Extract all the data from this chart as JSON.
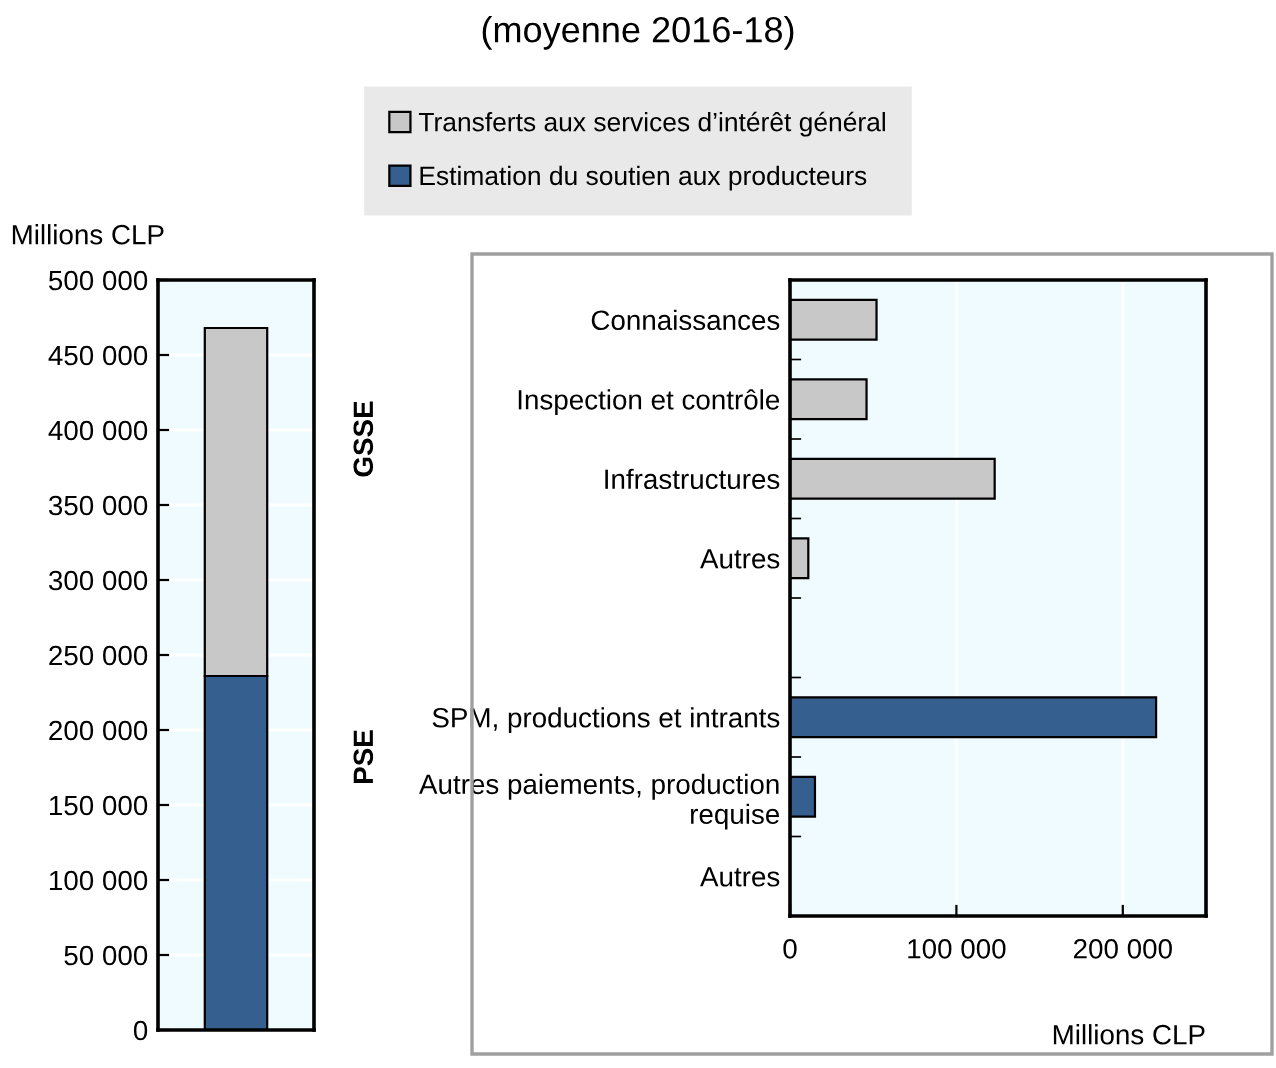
{
  "chart_data": [
    {
      "type": "bar",
      "stacked": true,
      "categories": [
        null
      ],
      "ylabel": "Millions CLP",
      "series": [
        {
          "name": "Estimation du soutien aux producteurs",
          "color": "#355f8f",
          "values": [
            236000
          ]
        },
        {
          "name": "Transferts aux services d’intérêt général",
          "color": "#c8c8c8",
          "values": [
            232000
          ]
        }
      ],
      "ylim": [
        0,
        500000
      ],
      "yticks": [
        {
          "value": 0,
          "label": "0"
        },
        {
          "value": 50000,
          "label": "50 000"
        },
        {
          "value": 100000,
          "label": "100 000"
        },
        {
          "value": 150000,
          "label": "150 000"
        },
        {
          "value": 200000,
          "label": "200 000"
        },
        {
          "value": 250000,
          "label": "250 000"
        },
        {
          "value": 300000,
          "label": "300 000"
        },
        {
          "value": 350000,
          "label": "350 000"
        },
        {
          "value": 400000,
          "label": "400 000"
        },
        {
          "value": 450000,
          "label": "450 000"
        },
        {
          "value": 500000,
          "label": "500 000"
        }
      ],
      "grid": "y",
      "legend": "top"
    },
    {
      "type": "bar",
      "orientation": "horizontal",
      "title": "(moyenne 2016-18)",
      "categories": [
        "Connaissances",
        "Inspection et contrôle",
        "Infrastructures",
        "Autres",
        null,
        "SPM, productions et intrants",
        "Autres paiements, production\nrequise",
        "Autres"
      ],
      "series": [
        {
          "color": "#c8c8c8",
          "values": [
            52000,
            46000,
            123000,
            11000,
            null,
            null,
            null,
            null
          ]
        },
        {
          "color": "#355f8f",
          "values": [
            null,
            null,
            null,
            null,
            null,
            220000,
            15000,
            null
          ]
        }
      ],
      "xlim": [
        0,
        250000
      ],
      "xticks": [
        {
          "value": 0,
          "label": "0"
        },
        {
          "value": 100000,
          "label": "100 000"
        },
        {
          "value": 200000,
          "label": "200 000"
        }
      ],
      "xlabel": "Millions CLP",
      "annotations": [
        "GSSE",
        "PSE"
      ],
      "grid": "x"
    }
  ]
}
